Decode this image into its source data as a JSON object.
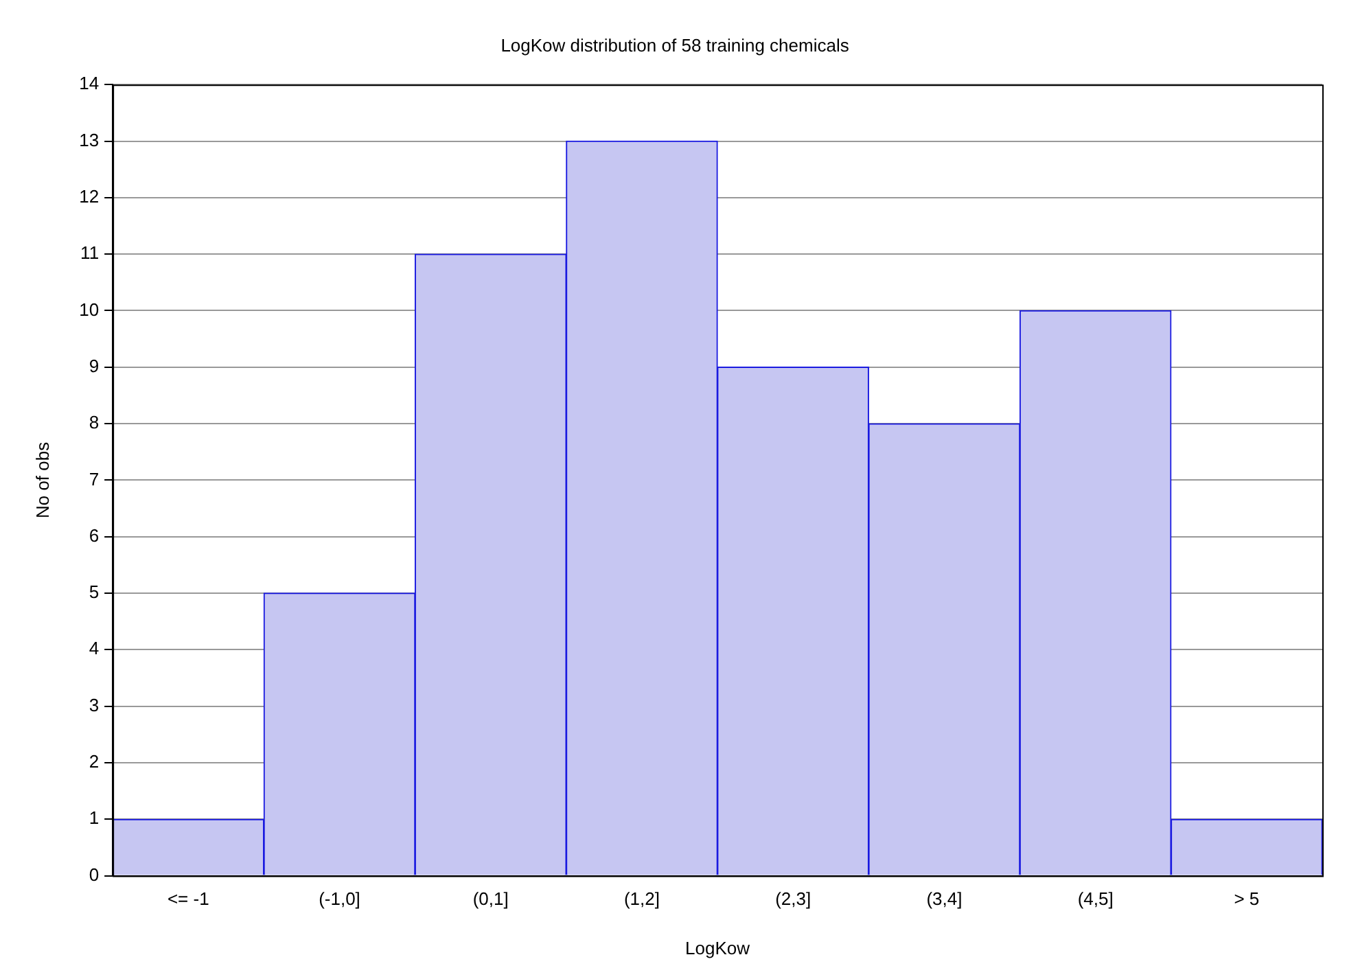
{
  "chart_data": {
    "type": "bar",
    "title": "LogKow distribution of 58 training chemicals",
    "xlabel": "LogKow",
    "ylabel": "No of obs",
    "categories": [
      "<= -1",
      "(-1,0]",
      "(0,1]",
      "(1,2]",
      "(2,3]",
      "(3,4]",
      "(4,5]",
      "> 5"
    ],
    "values": [
      1,
      5,
      11,
      13,
      9,
      8,
      10,
      1
    ],
    "color": "#c6c6f2",
    "ylim": [
      0,
      14
    ],
    "yticks": [
      0,
      1,
      2,
      3,
      4,
      5,
      6,
      7,
      8,
      9,
      10,
      11,
      12,
      13,
      14
    ],
    "grid": "y"
  }
}
